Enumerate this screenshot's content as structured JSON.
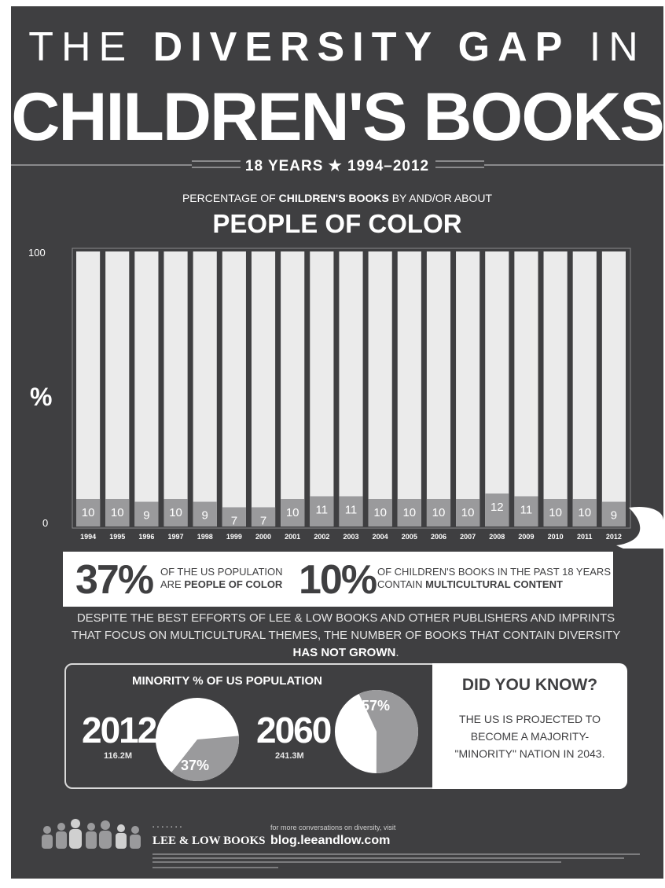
{
  "header": {
    "title_line1_thin": "THE",
    "title_line1_bold": "DIVERSITY GAP",
    "title_line1_end": "IN",
    "title_line2": "CHILDREN'S BOOKS",
    "subtitle": "18 YEARS ★ 1994–2012"
  },
  "chart_heading": {
    "pre": "PERCENTAGE OF",
    "bold": "CHILDREN'S BOOKS",
    "post": "BY AND/OR ABOUT",
    "big": "PEOPLE OF COLOR"
  },
  "chart_data": {
    "type": "bar",
    "categories": [
      "1994",
      "1995",
      "1996",
      "1997",
      "1998",
      "1999",
      "2000",
      "2001",
      "2002",
      "2003",
      "2004",
      "2005",
      "2006",
      "2007",
      "2008",
      "2009",
      "2010",
      "2011",
      "2012"
    ],
    "values": [
      10,
      10,
      9,
      10,
      9,
      7,
      7,
      10,
      11,
      11,
      10,
      10,
      10,
      10,
      12,
      11,
      10,
      10,
      9
    ],
    "total": 100,
    "ylabel": "%",
    "yticks": [
      "100",
      "0"
    ],
    "ylim": [
      0,
      100
    ],
    "colors": {
      "total": "#ebebeb",
      "value": "#9a9a9c",
      "label": "#ffffff"
    }
  },
  "stats": {
    "left_num": "37%",
    "left_line1": "OF THE US POPULATION",
    "left_line2_pre": "ARE",
    "left_line2_bold": "PEOPLE OF COLOR",
    "right_num": "10%",
    "right_line1": "OF CHILDREN'S BOOKS IN THE PAST 18 YEARS",
    "right_line2_pre": "CONTAIN",
    "right_line2_bold": "MULTICULTURAL CONTENT"
  },
  "paragraph": {
    "text": "DESPITE THE BEST EFFORTS OF LEE & LOW BOOKS AND OTHER PUBLISHERS AND IMPRINTS THAT FOCUS ON MULTICULTURAL THEMES, THE NUMBER OF BOOKS THAT CONTAIN DIVERSITY",
    "bold": "HAS NOT GROWN",
    "end": "."
  },
  "population": {
    "title": "MINORITY % OF US POPULATION",
    "y2012": {
      "year": "2012",
      "pop": "116.2M",
      "pct_label": "37%",
      "pct": 37
    },
    "y2060": {
      "year": "2060",
      "pop": "241.3M",
      "pct_label": "57%",
      "pct": 57
    },
    "pie_colors": {
      "minority": "#9a9a9c",
      "rest": "#ffffff"
    }
  },
  "did_you_know": {
    "title": "DID YOU KNOW?",
    "line1": "THE US IS PROJECTED TO",
    "line2": "BECOME A MAJORITY-",
    "line3": "\"MINORITY\" NATION IN 2043."
  },
  "footer": {
    "publisher": "LEE & LOW BOOKS",
    "more_text": "for more conversations on diversity, visit",
    "blog": "blog.leeandlow.com"
  }
}
